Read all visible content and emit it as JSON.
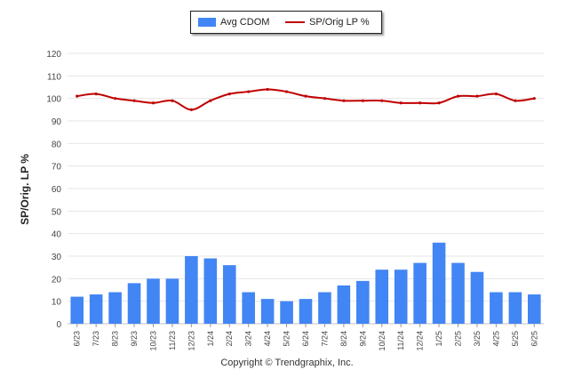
{
  "chart_data": {
    "type": "bar+line",
    "categories": [
      "6/23",
      "7/23",
      "8/23",
      "9/23",
      "10/23",
      "11/23",
      "12/23",
      "1/24",
      "2/24",
      "3/24",
      "4/24",
      "5/24",
      "6/24",
      "7/24",
      "8/24",
      "9/24",
      "10/24",
      "11/24",
      "12/24",
      "1/25",
      "2/25",
      "3/25",
      "4/25",
      "5/25",
      "6/25"
    ],
    "series": [
      {
        "name": "Avg CDOM",
        "type": "bar",
        "color": "#4285f4",
        "values": [
          12,
          13,
          14,
          18,
          20,
          20,
          30,
          29,
          26,
          14,
          11,
          10,
          11,
          14,
          17,
          19,
          24,
          24,
          27,
          36,
          27,
          23,
          14,
          14,
          13
        ]
      },
      {
        "name": "SP/Orig LP %",
        "type": "line",
        "color": "#c00000",
        "values": [
          101,
          102,
          100,
          99,
          98,
          99,
          95,
          99,
          102,
          103,
          104,
          103,
          101,
          100,
          99,
          99,
          99,
          98,
          98,
          98,
          101,
          101,
          102,
          99,
          100
        ]
      }
    ],
    "ylabel": "SP/Orig. LP %",
    "ylim": [
      0,
      120
    ],
    "yticks": [
      0,
      10,
      20,
      30,
      40,
      50,
      60,
      70,
      80,
      90,
      100,
      110,
      120
    ],
    "grid": true,
    "legend_position": "top-center"
  },
  "footer": {
    "copyright": "Copyright © Trendgraphix, Inc."
  }
}
